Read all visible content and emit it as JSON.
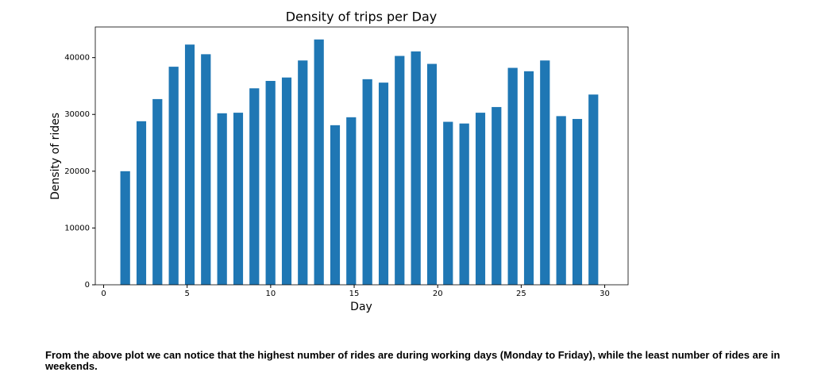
{
  "chart_data": {
    "type": "histogram",
    "title": "Density of trips per Day",
    "xlabel": "Day",
    "ylabel": "Density of rides",
    "bins": [
      1,
      1.97,
      2.93,
      3.9,
      4.87,
      5.83,
      6.8,
      7.77,
      8.73,
      9.7,
      10.67,
      11.63,
      12.6,
      13.57,
      14.53,
      15.5,
      16.47,
      17.43,
      18.4,
      19.37,
      20.33,
      21.3,
      22.27,
      23.23,
      24.2,
      25.17,
      26.13,
      27.1,
      28.07,
      29.03,
      30
    ],
    "values": [
      20000,
      28800,
      32700,
      38400,
      42300,
      40600,
      30200,
      30300,
      34600,
      35900,
      36500,
      39500,
      43200,
      28100,
      29500,
      36200,
      35600,
      40300,
      41100,
      38900,
      28700,
      28400,
      30300,
      31300,
      38200,
      37600,
      39500,
      29700,
      29200,
      33500
    ],
    "color": "#1f77b4",
    "xlim": [
      -0.5,
      31.4
    ],
    "xticks": [
      0,
      5,
      10,
      15,
      20,
      25,
      30
    ],
    "ylim": [
      0,
      45400
    ],
    "yticks": [
      0,
      10000,
      20000,
      30000,
      40000
    ],
    "grid": false
  },
  "note": "From the above plot we can notice that the highest number of rides are during working days (Monday to Friday), while the least number of rides are in weekends."
}
